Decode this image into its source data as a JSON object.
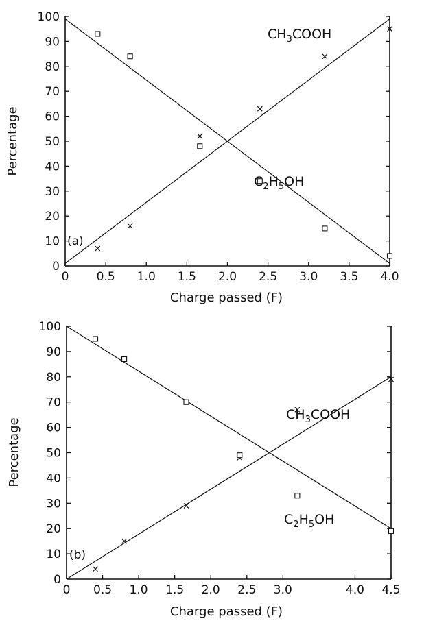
{
  "chart_data": [
    {
      "type": "scatter",
      "panel_label": "(a)",
      "xlabel": "Charge passed (F)",
      "ylabel": "Percentage",
      "xlim": [
        0,
        4.0
      ],
      "ylim": [
        0,
        100
      ],
      "x_ticks": [
        "0",
        "0.5",
        "1.0",
        "1.5",
        "2.0",
        "2.5",
        "3.0",
        "3.5",
        "4.0"
      ],
      "y_ticks": [
        "0",
        "10",
        "20",
        "30",
        "40",
        "50",
        "60",
        "70",
        "80",
        "90",
        "100"
      ],
      "grid": false,
      "series": [
        {
          "name": "CH3COOH",
          "label_main": "CH",
          "label_sub": "3",
          "label_tail": "COOH",
          "marker": "cross",
          "x": [
            0.4,
            0.8,
            1.66,
            2.4,
            3.2,
            4.0
          ],
          "y": [
            7,
            16,
            52,
            63,
            84,
            95
          ],
          "fit": {
            "x": [
              0,
              4.0
            ],
            "y": [
              1,
              99
            ]
          }
        },
        {
          "name": "C2H5OH",
          "label_main": "C",
          "label_sub": "2",
          "label_mid": "H",
          "label_sub2": "5",
          "label_tail": "OH",
          "marker": "square",
          "x": [
            0.4,
            0.8,
            1.66,
            2.4,
            3.2,
            4.0
          ],
          "y": [
            93,
            84,
            48,
            34,
            15,
            4
          ],
          "fit": {
            "x": [
              0,
              4.0
            ],
            "y": [
              99,
              1
            ]
          }
        }
      ]
    },
    {
      "type": "scatter",
      "panel_label": "(b)",
      "xlabel": "Charge passed (F)",
      "ylabel": "Percentage",
      "xlim": [
        0,
        4.5
      ],
      "ylim": [
        0,
        100
      ],
      "x_ticks": [
        "0",
        "0.5",
        "1.0",
        "1.5",
        "2.0",
        "2.5",
        "3.0",
        "4.0",
        "4.5"
      ],
      "y_ticks": [
        "0",
        "10",
        "20",
        "30",
        "40",
        "50",
        "60",
        "70",
        "80",
        "90",
        "100"
      ],
      "grid": false,
      "series": [
        {
          "name": "CH3COOH",
          "label_main": "CH",
          "label_sub": "3",
          "label_tail": "COOH",
          "marker": "cross",
          "x": [
            0.4,
            0.8,
            1.66,
            2.4,
            3.2,
            4.5
          ],
          "y": [
            4,
            15,
            29,
            48,
            67,
            79
          ],
          "fit": {
            "x": [
              0,
              4.5
            ],
            "y": [
              0,
              80
            ]
          }
        },
        {
          "name": "C2H5OH",
          "label_main": "C",
          "label_sub": "2",
          "label_mid": "H",
          "label_sub2": "5",
          "label_tail": "OH",
          "marker": "square",
          "x": [
            0.4,
            0.8,
            1.66,
            2.4,
            3.2,
            4.5
          ],
          "y": [
            95,
            87,
            70,
            49,
            33,
            19
          ],
          "fit": {
            "x": [
              0,
              4.5
            ],
            "y": [
              100,
              20
            ]
          }
        }
      ]
    }
  ]
}
